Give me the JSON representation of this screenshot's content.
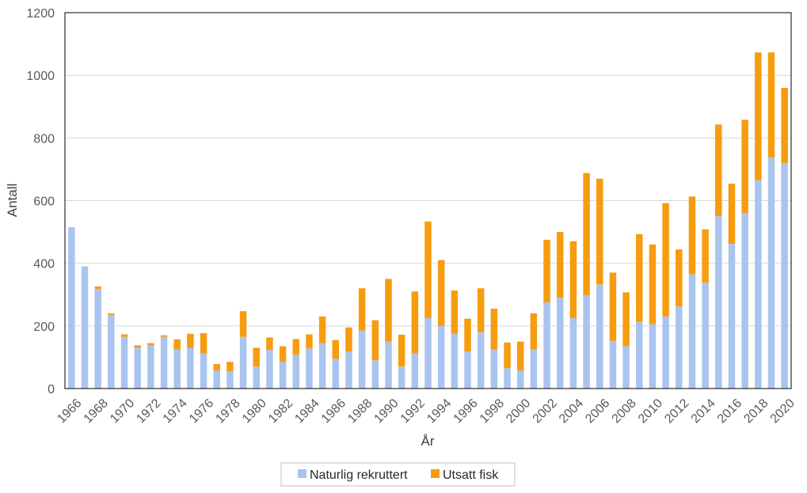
{
  "chart_data": {
    "type": "bar",
    "stacked": true,
    "title": "",
    "xlabel": "År",
    "ylabel": "Antall",
    "ylim": [
      0,
      1200
    ],
    "yticks": [
      0,
      200,
      400,
      600,
      800,
      1000,
      1200
    ],
    "grid": true,
    "legend_position": "bottom",
    "categories": [
      "1966",
      "1967",
      "1968",
      "1969",
      "1970",
      "1971",
      "1972",
      "1973",
      "1974",
      "1975",
      "1976",
      "1977",
      "1978",
      "1979",
      "1980",
      "1981",
      "1982",
      "1983",
      "1984",
      "1985",
      "1986",
      "1987",
      "1988",
      "1989",
      "1990",
      "1991",
      "1992",
      "1993",
      "1994",
      "1995",
      "1996",
      "1997",
      "1998",
      "1999",
      "2000",
      "2001",
      "2002",
      "2003",
      "2004",
      "2005",
      "2006",
      "2007",
      "2008",
      "2009",
      "2010",
      "2011",
      "2012",
      "2013",
      "2014",
      "2015",
      "2016",
      "2017",
      "2018",
      "2019",
      "2020"
    ],
    "xtick_labels": [
      "1966",
      "1968",
      "1970",
      "1972",
      "1974",
      "1976",
      "1978",
      "1980",
      "1982",
      "1984",
      "1986",
      "1988",
      "1990",
      "1992",
      "1994",
      "1996",
      "1998",
      "2000",
      "2002",
      "2004",
      "2006",
      "2008",
      "2010",
      "2012",
      "2014",
      "2016",
      "2018",
      "2020"
    ],
    "series": [
      {
        "name": "Naturlig rekruttert",
        "color": "#a9c5ef",
        "values": [
          515,
          390,
          318,
          235,
          165,
          130,
          138,
          165,
          125,
          130,
          112,
          58,
          55,
          165,
          70,
          123,
          85,
          108,
          128,
          145,
          95,
          118,
          185,
          90,
          150,
          70,
          112,
          225,
          200,
          175,
          118,
          180,
          125,
          65,
          58,
          125,
          275,
          290,
          225,
          298,
          332,
          152,
          135,
          213,
          205,
          230,
          262,
          365,
          338,
          550,
          462,
          560,
          665,
          738,
          720
        ]
      },
      {
        "name": "Utsatt fisk",
        "color": "#f79c0f",
        "values": [
          0,
          0,
          8,
          5,
          8,
          8,
          7,
          5,
          32,
          45,
          65,
          20,
          30,
          82,
          60,
          40,
          50,
          50,
          45,
          85,
          60,
          77,
          135,
          128,
          200,
          102,
          198,
          308,
          210,
          138,
          105,
          140,
          130,
          82,
          92,
          115,
          200,
          210,
          245,
          390,
          338,
          218,
          172,
          280,
          255,
          362,
          182,
          248,
          170,
          293,
          192,
          298,
          408,
          335,
          240
        ]
      }
    ]
  }
}
